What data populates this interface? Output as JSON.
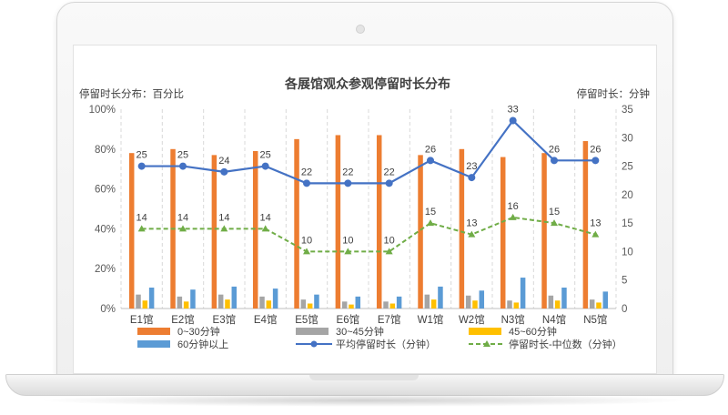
{
  "chart_data": {
    "type": "bar",
    "title": "各展馆观众参观停留时长分布",
    "left_axis_title": "停留时长分布：百分比",
    "right_axis_title": "停留时长：分钟",
    "categories": [
      "E1馆",
      "E2馆",
      "E3馆",
      "E4馆",
      "E5馆",
      "E6馆",
      "E7馆",
      "W1馆",
      "W2馆",
      "N3馆",
      "N4馆",
      "N5馆"
    ],
    "y_left_ticks": [
      "0%",
      "20%",
      "40%",
      "60%",
      "80%",
      "100%"
    ],
    "y_left_range": [
      0,
      100
    ],
    "y_right_ticks": [
      "0",
      "5",
      "10",
      "15",
      "20",
      "25",
      "30",
      "35"
    ],
    "y_right_range": [
      0,
      35
    ],
    "grid": "vertical-dashed",
    "legend_position": "bottom",
    "series": [
      {
        "name": "0~30分钟",
        "kind": "bar",
        "axis": "left",
        "color": "#ED7D31",
        "values": [
          78,
          80,
          77,
          79,
          85,
          87,
          87,
          77,
          80,
          76,
          78,
          84
        ]
      },
      {
        "name": "30~45分钟",
        "kind": "bar",
        "axis": "left",
        "color": "#A5A5A5",
        "values": [
          7,
          6,
          7,
          6,
          4.5,
          3.5,
          3.5,
          7,
          6.5,
          4,
          6.5,
          4.5
        ]
      },
      {
        "name": "45~60分钟",
        "kind": "bar",
        "axis": "left",
        "color": "#FFC000",
        "values": [
          4,
          3.5,
          4.5,
          4,
          2.5,
          2,
          2.5,
          4.5,
          4,
          3,
          4,
          3
        ]
      },
      {
        "name": "60分钟以上",
        "kind": "bar",
        "axis": "left",
        "color": "#5B9BD5",
        "values": [
          10.5,
          9.5,
          11,
          10,
          7,
          6,
          6,
          11,
          9,
          15.5,
          10.5,
          8.5
        ]
      },
      {
        "name": "平均停留时长（分钟）",
        "kind": "line",
        "axis": "right",
        "color": "#4472C4",
        "values": [
          25,
          25,
          24,
          25,
          22,
          22,
          22,
          26,
          23,
          33,
          26,
          26
        ]
      },
      {
        "name": "停留时长-中位数（分钟）",
        "kind": "dashed-line",
        "axis": "right",
        "color": "#70AD47",
        "values": [
          14,
          14,
          14,
          14,
          10,
          10,
          10,
          15,
          13,
          16,
          15,
          13
        ]
      }
    ]
  }
}
